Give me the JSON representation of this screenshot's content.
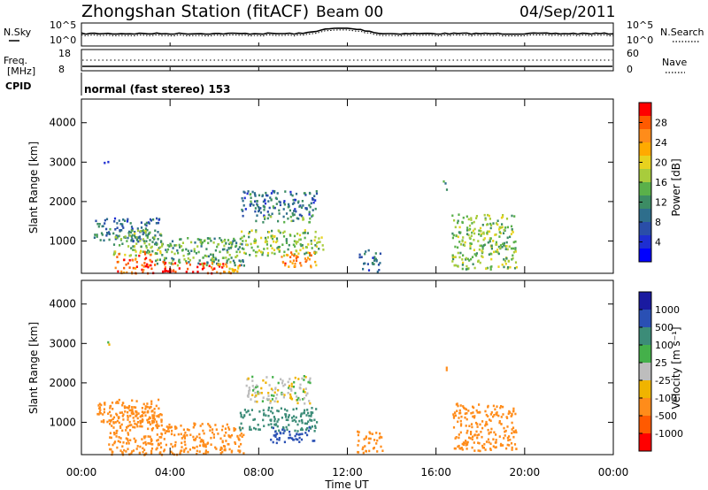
{
  "header": {
    "title": "Zhongshan Station (fitACF)",
    "beam": "Beam 00",
    "date": "04/Sep/2011",
    "cpid_label": "CPID",
    "cpid_value": "normal (fast stereo) 153"
  },
  "left_labels": {
    "nsky": "N.Sky",
    "freq": "Freq.",
    "freq_unit": "[MHz]"
  },
  "right_labels": {
    "nsearch": "N.Search",
    "nave": "Nave"
  },
  "noise_axis": {
    "top": "10^5",
    "bottom": "10^0"
  },
  "freq_axis": {
    "top": "18",
    "bottom": "8"
  },
  "nave_axis": {
    "top": "60",
    "bottom": "0"
  },
  "power_colorbar": {
    "label": "Power [dB]",
    "ticks": [
      "28",
      "24",
      "20",
      "16",
      "12",
      "8",
      "4"
    ],
    "colors": [
      "#ff0000",
      "#ff5a00",
      "#ff8c1a",
      "#ffaa00",
      "#e8d21e",
      "#a8cc3c",
      "#5ab04a",
      "#3c8c64",
      "#2e6e8c",
      "#2a4ea8",
      "#1e2ed2",
      "#0000ff"
    ]
  },
  "velocity_colorbar": {
    "label": "Velocity [m s⁻¹]",
    "ticks": [
      "1000",
      "500",
      "100",
      "25",
      "-25",
      "-100",
      "-500",
      "-1000"
    ],
    "colors": [
      "#1a1aa0",
      "#2a50b4",
      "#3c8c78",
      "#44b04a",
      "#bdbdbd",
      "#f0b400",
      "#ff8c1a",
      "#ff5a00",
      "#ff0000"
    ]
  },
  "time_axis": {
    "label": "Time UT",
    "ticks": [
      "00:00",
      "04:00",
      "08:00",
      "12:00",
      "16:00",
      "20:00",
      "00:00"
    ]
  },
  "chart_data": [
    {
      "type": "heatmap",
      "title": "Power",
      "xlabel": "Time UT",
      "ylabel": "Slant Range [km]",
      "ylim": [
        180,
        4600
      ],
      "xlim_hours": [
        0,
        24
      ],
      "yticks": [
        1000,
        2000,
        3000,
        4000
      ],
      "colorbar_label": "Power [dB]",
      "regions": [
        {
          "t": [
            1.0,
            1.3
          ],
          "r": [
            3000,
            3100
          ],
          "v": 8
        },
        {
          "t": [
            0.5,
            3.6
          ],
          "r": [
            1000,
            1600
          ],
          "v": 10
        },
        {
          "t": [
            1.4,
            3.6
          ],
          "r": [
            650,
            1300
          ],
          "v": 16
        },
        {
          "t": [
            1.5,
            3.3
          ],
          "r": [
            200,
            750
          ],
          "v": 26
        },
        {
          "t": [
            3.3,
            7.3
          ],
          "r": [
            400,
            1100
          ],
          "v": 14
        },
        {
          "t": [
            3.5,
            6.4
          ],
          "r": [
            200,
            500
          ],
          "v": 28
        },
        {
          "t": [
            6.0,
            7.5
          ],
          "r": [
            200,
            450
          ],
          "v": 22
        },
        {
          "t": [
            7.2,
            10.6
          ],
          "r": [
            1650,
            2300
          ],
          "v": 10
        },
        {
          "t": [
            7.8,
            10.4
          ],
          "r": [
            1500,
            1650
          ],
          "v": 14
        },
        {
          "t": [
            7.1,
            10.9
          ],
          "r": [
            650,
            1300
          ],
          "v": 16
        },
        {
          "t": [
            9.0,
            10.6
          ],
          "r": [
            350,
            750
          ],
          "v": 24
        },
        {
          "t": [
            12.5,
            13.5
          ],
          "r": [
            250,
            800
          ],
          "v": 10
        },
        {
          "t": [
            16.7,
            19.6
          ],
          "r": [
            300,
            1700
          ],
          "v": 16
        },
        {
          "t": [
            16.3,
            16.5
          ],
          "r": [
            2300,
            2550
          ],
          "v": 14
        }
      ]
    },
    {
      "type": "heatmap",
      "title": "Velocity",
      "xlabel": "Time UT",
      "ylabel": "Slant Range [km]",
      "ylim": [
        180,
        4600
      ],
      "xlim_hours": [
        0,
        24
      ],
      "yticks": [
        1000,
        2000,
        3000,
        4000
      ],
      "colorbar_label": "Velocity [m s⁻¹]",
      "regions": [
        {
          "t": [
            1.0,
            1.3
          ],
          "r": [
            3000,
            3100
          ],
          "v": 0
        },
        {
          "t": [
            0.6,
            3.6
          ],
          "r": [
            1000,
            1600
          ],
          "v": -200
        },
        {
          "t": [
            1.2,
            3.6
          ],
          "r": [
            200,
            1300
          ],
          "v": -300
        },
        {
          "t": [
            3.3,
            7.3
          ],
          "r": [
            200,
            1000
          ],
          "v": -300
        },
        {
          "t": [
            7.4,
            10.3
          ],
          "r": [
            1500,
            2200
          ],
          "v": 0
        },
        {
          "t": [
            7.1,
            10.6
          ],
          "r": [
            800,
            1400
          ],
          "v": 150
        },
        {
          "t": [
            8.5,
            10.6
          ],
          "r": [
            500,
            900
          ],
          "v": 600
        },
        {
          "t": [
            12.4,
            13.6
          ],
          "r": [
            250,
            800
          ],
          "v": -300
        },
        {
          "t": [
            16.7,
            19.6
          ],
          "r": [
            300,
            1500
          ],
          "v": -300
        },
        {
          "t": [
            16.3,
            16.5
          ],
          "r": [
            2300,
            2550
          ],
          "v": -500
        }
      ]
    }
  ]
}
